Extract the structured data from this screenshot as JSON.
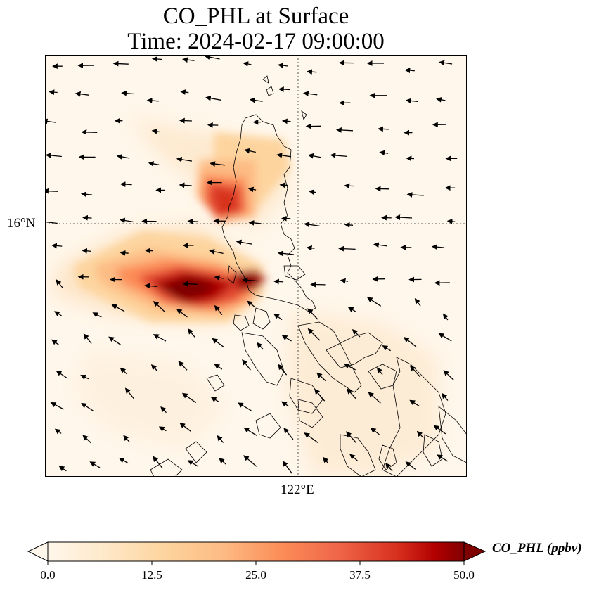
{
  "title": {
    "line1": "CO_PHL at Surface",
    "line2": "Time: 2024-02-17 09:00:00"
  },
  "map": {
    "lat_tick_label": "16°N",
    "lon_tick_label": "122°E"
  },
  "colorbar": {
    "label": "CO_PHL (ppbv)",
    "min": 0.0,
    "max": 50.0,
    "ticks": [
      "0.0",
      "12.5",
      "25.0",
      "37.5",
      "50.0"
    ],
    "colormap": "OrRd",
    "extend": "both"
  },
  "colors": {
    "low": "#fff7ec",
    "mid_low": "#fdd49e",
    "mid": "#fc8d59",
    "high": "#d7301f",
    "max": "#7f0000"
  }
}
